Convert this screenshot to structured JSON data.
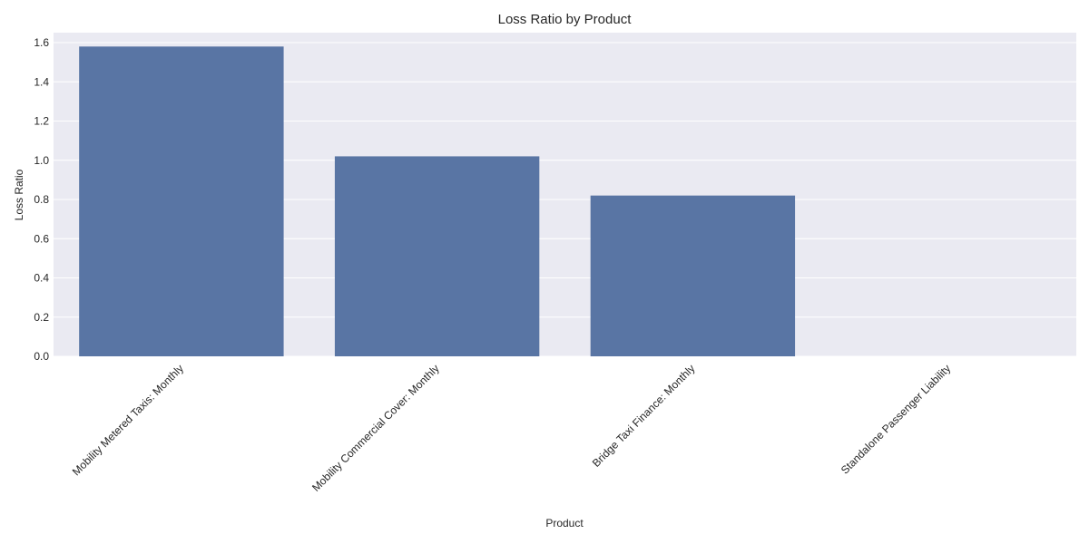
{
  "chart_data": {
    "type": "bar",
    "title": "Loss Ratio by Product",
    "xlabel": "Product",
    "ylabel": "Loss Ratio",
    "categories": [
      "Mobility Metered Taxis: Monthly",
      "Mobility Commercial Cover: Monthly",
      "Bridge Taxi Finance: Monthly",
      "Standalone Passenger Liability"
    ],
    "values": [
      1.58,
      1.02,
      0.82,
      0.0
    ],
    "ylim": [
      0,
      1.6
    ],
    "yticks": [
      "0.0",
      "0.2",
      "0.4",
      "0.6",
      "0.8",
      "1.0",
      "1.2",
      "1.4",
      "1.6"
    ],
    "grid": true,
    "bar_color": "#5975a4",
    "plot_background": "#eaeaf2"
  }
}
